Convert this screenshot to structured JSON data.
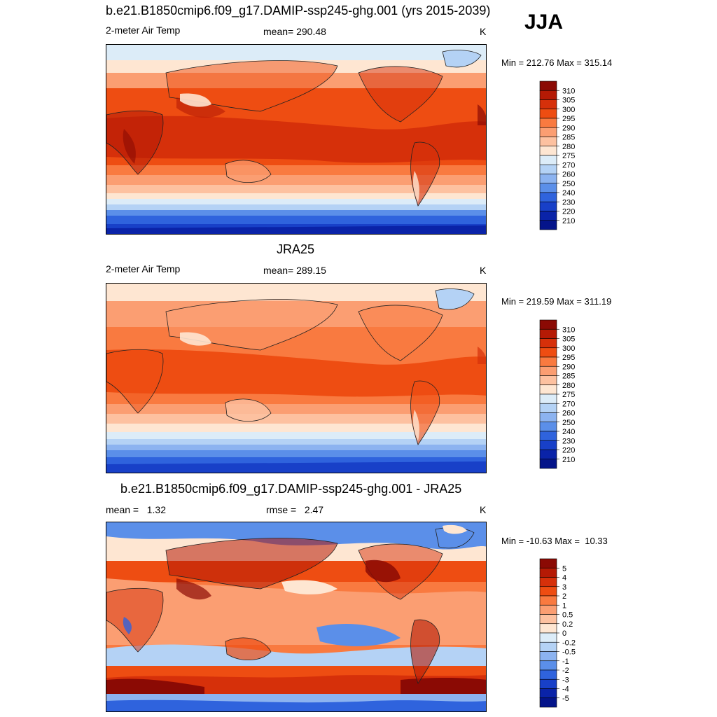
{
  "season": "JJA",
  "panels": [
    {
      "title": "b.e21.B1850cmip6.f09_g17.DAMIP-ssp245-ghg.001 (yrs 2015-2039)",
      "left_label": "2-meter Air Temp",
      "center_label": "mean= 290.48",
      "units": "K",
      "minmax": "Min = 212.76 Max = 315.14",
      "colorbar": {
        "labels": [
          "310",
          "305",
          "300",
          "295",
          "290",
          "285",
          "280",
          "275",
          "270",
          "260",
          "250",
          "240",
          "230",
          "220",
          "210"
        ],
        "colors": [
          "#8b0a04",
          "#b51a05",
          "#d6300a",
          "#ee4d12",
          "#f97a40",
          "#fb9e72",
          "#fdc1a0",
          "#fee6d2",
          "#dcecf8",
          "#b4d2f5",
          "#8cb3f0",
          "#5b8fe9",
          "#2f63dd",
          "#1840c8",
          "#0a23a8",
          "#04148a"
        ]
      }
    },
    {
      "title": "JRA25",
      "left_label": "2-meter Air Temp",
      "center_label": "mean= 289.15",
      "units": "K",
      "minmax": "Min = 219.59 Max = 311.19",
      "colorbar": {
        "labels": [
          "310",
          "305",
          "300",
          "295",
          "290",
          "285",
          "280",
          "275",
          "270",
          "260",
          "250",
          "240",
          "230",
          "220",
          "210"
        ],
        "colors": [
          "#8b0a04",
          "#b51a05",
          "#d6300a",
          "#ee4d12",
          "#f97a40",
          "#fb9e72",
          "#fdc1a0",
          "#fee6d2",
          "#dcecf8",
          "#b4d2f5",
          "#8cb3f0",
          "#5b8fe9",
          "#2f63dd",
          "#1840c8",
          "#0a23a8",
          "#04148a"
        ]
      }
    },
    {
      "title": "b.e21.B1850cmip6.f09_g17.DAMIP-ssp245-ghg.001 - JRA25",
      "left_label": "mean =   1.32",
      "center_label": "rmse =   2.47",
      "units": "K",
      "minmax": "Min = -10.63 Max =  10.33",
      "colorbar": {
        "labels": [
          "5",
          "4",
          "3",
          "2",
          "1",
          "0.5",
          "0.2",
          "0",
          "-0.2",
          "-0.5",
          "-1",
          "-2",
          "-3",
          "-4",
          "-5"
        ],
        "colors": [
          "#8b0a04",
          "#b51a05",
          "#d6300a",
          "#ee4d12",
          "#f97a40",
          "#fb9e72",
          "#fdc1a0",
          "#fee6d2",
          "#dcecf8",
          "#b4d2f5",
          "#8cb3f0",
          "#5b8fe9",
          "#2f63dd",
          "#1840c8",
          "#0a23a8",
          "#04148a"
        ]
      }
    }
  ]
}
